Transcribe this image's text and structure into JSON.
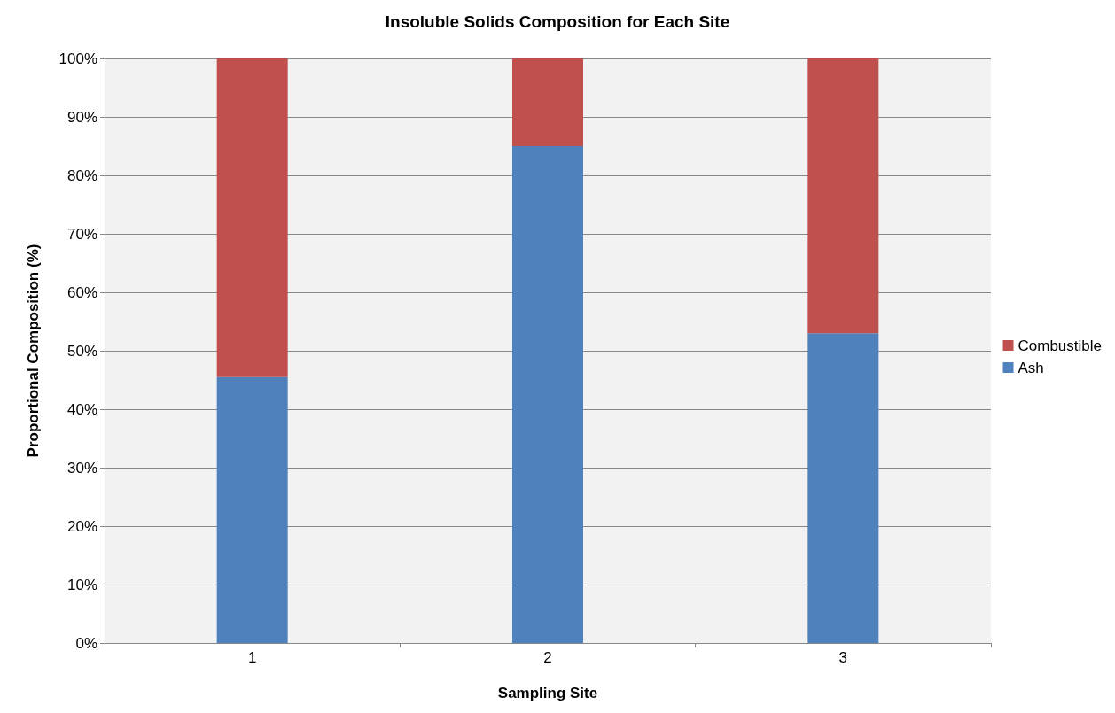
{
  "chart_data": {
    "type": "bar",
    "title": "Insoluble Solids Composition for Each Site",
    "xlabel": "Sampling Site",
    "ylabel": "Proportional Composition (%)",
    "categories": [
      "1",
      "2",
      "3"
    ],
    "series": [
      {
        "name": "Ash",
        "color": "#4f81bd",
        "values": [
          45.5,
          85,
          53
        ]
      },
      {
        "name": "Combustible",
        "color": "#c0504d",
        "values": [
          54.5,
          15,
          47
        ]
      }
    ],
    "stacked": true,
    "ylim": [
      0,
      100
    ],
    "yticks": [
      {
        "value": 0,
        "label": "0%"
      },
      {
        "value": 10,
        "label": "10%"
      },
      {
        "value": 20,
        "label": "20%"
      },
      {
        "value": 30,
        "label": "30%"
      },
      {
        "value": 40,
        "label": "40%"
      },
      {
        "value": 50,
        "label": "50%"
      },
      {
        "value": 60,
        "label": "60%"
      },
      {
        "value": 70,
        "label": "70%"
      },
      {
        "value": 80,
        "label": "80%"
      },
      {
        "value": 90,
        "label": "90%"
      },
      {
        "value": 100,
        "label": "100%"
      }
    ],
    "grid": "y",
    "legend": "right"
  }
}
